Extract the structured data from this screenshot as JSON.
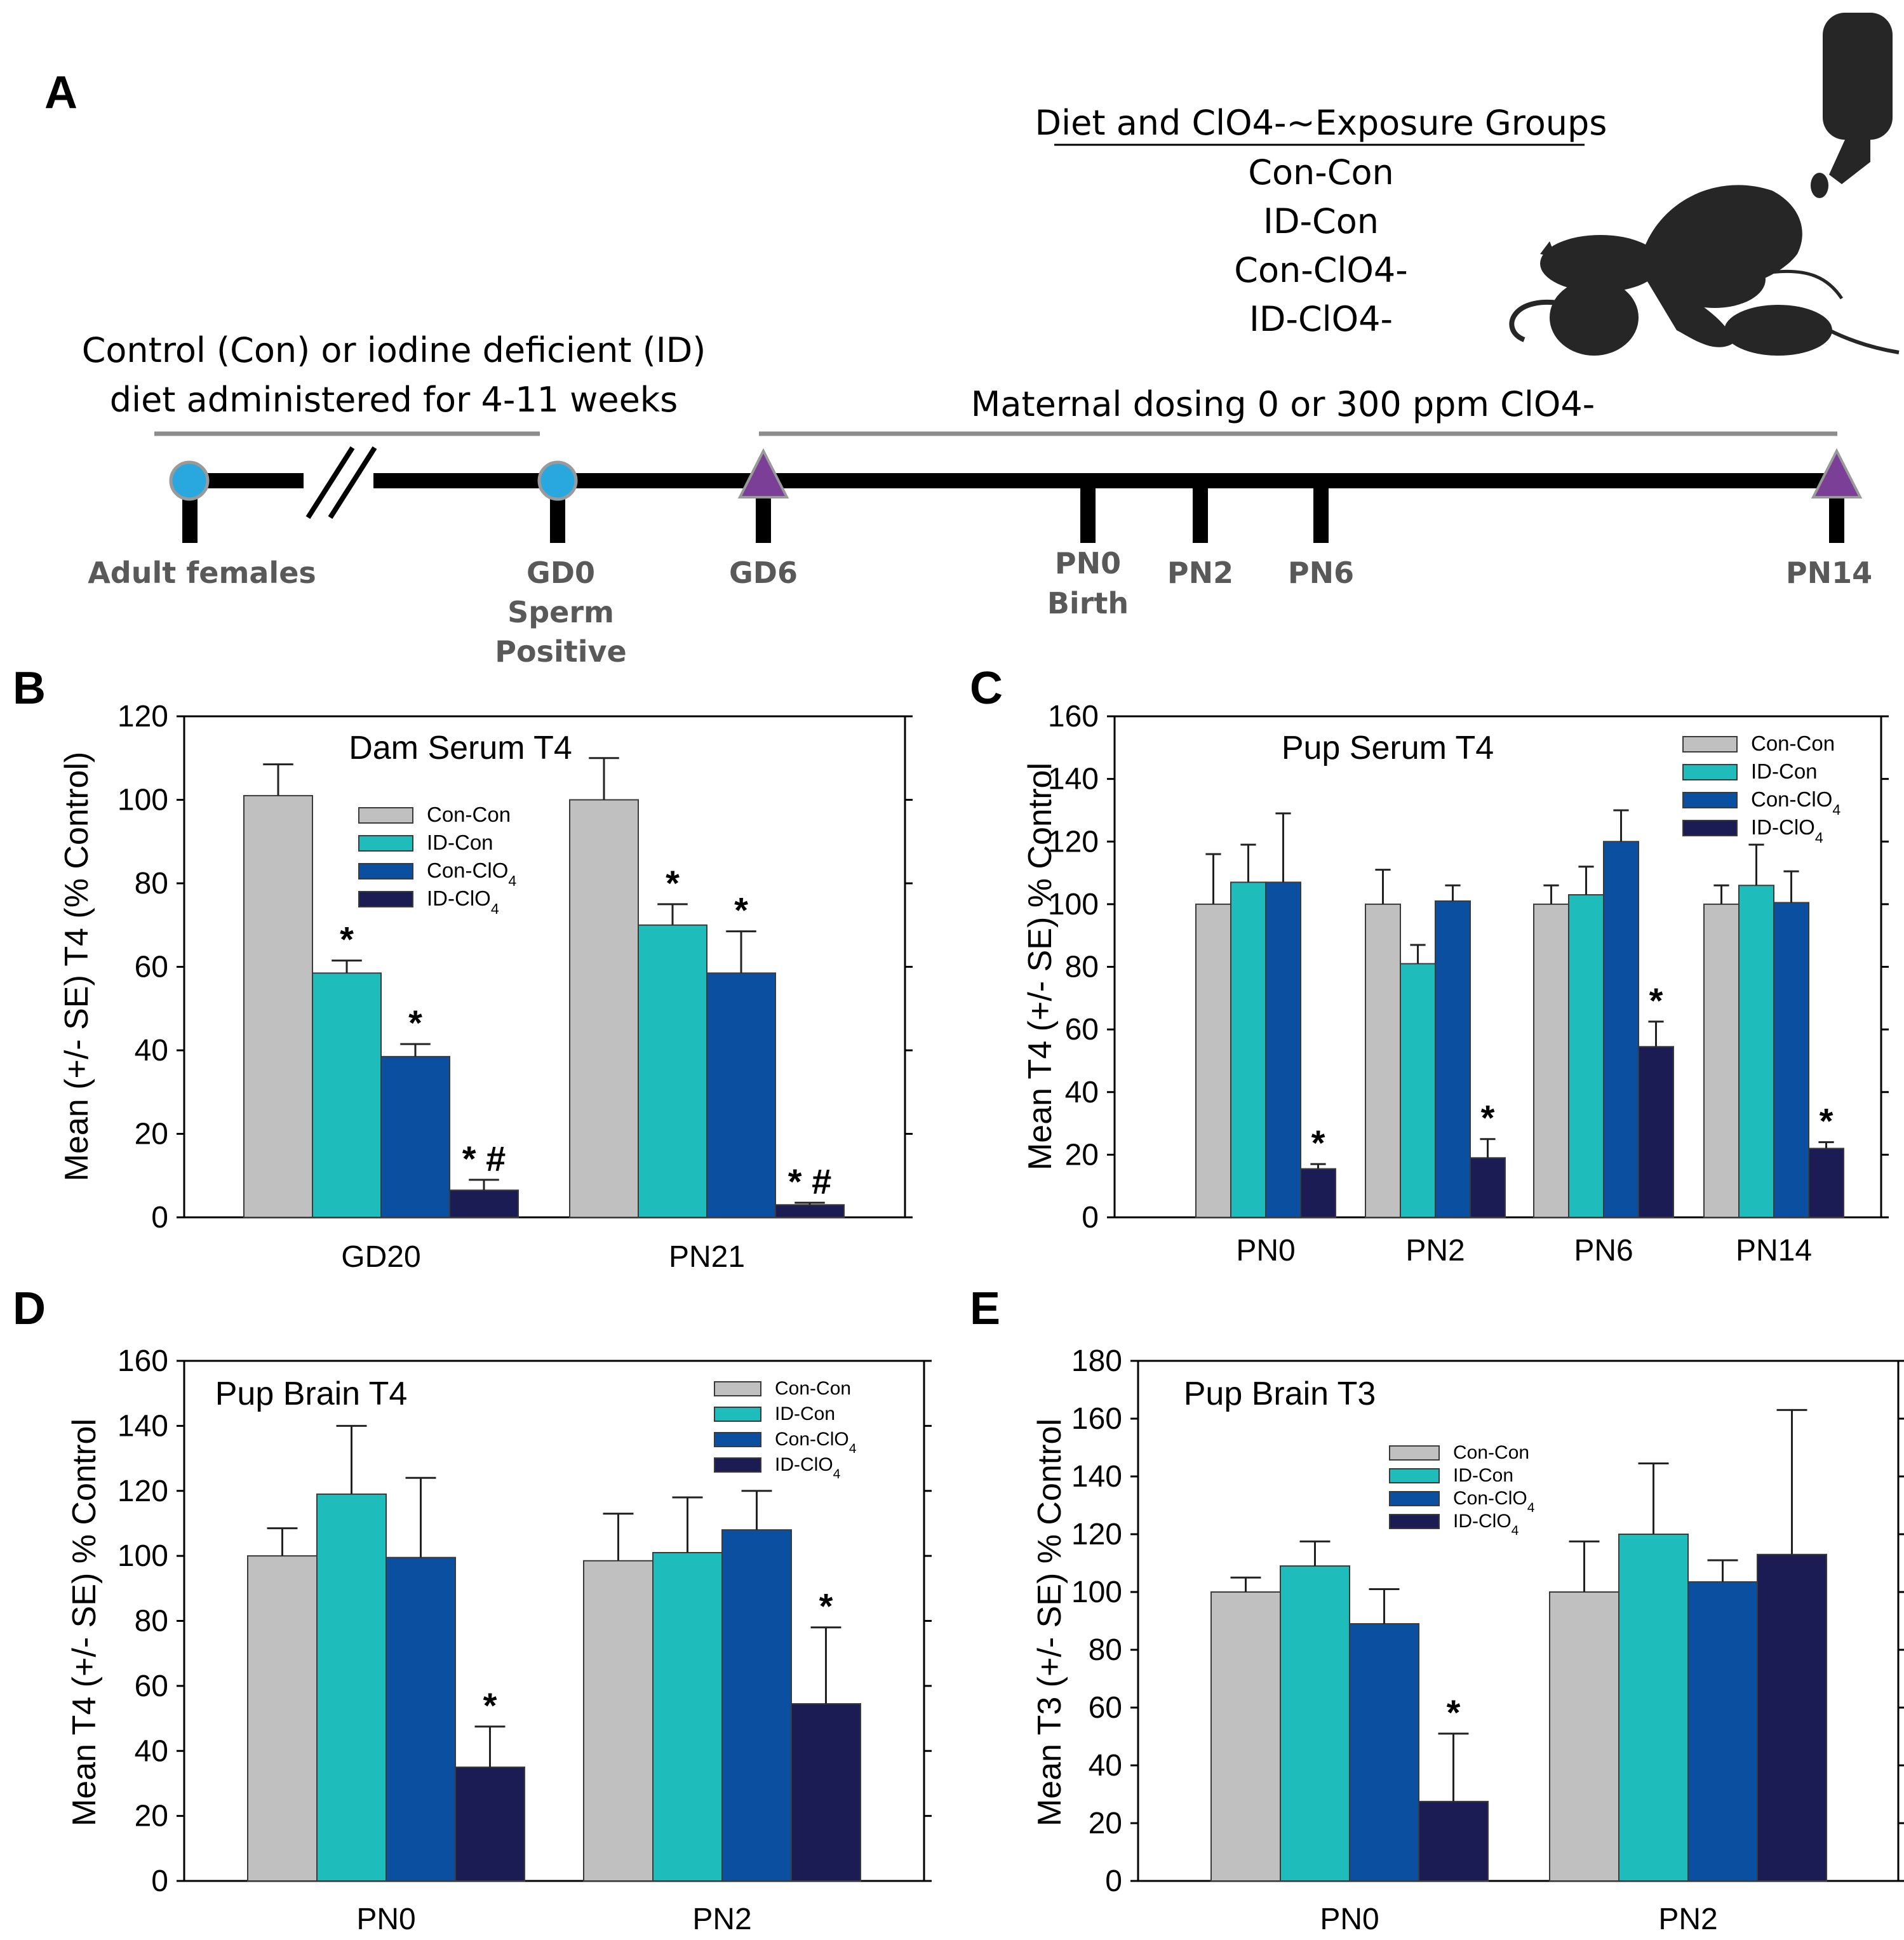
{
  "colors": {
    "con_con": "#c0c0c0",
    "id_con": "#1fbcbc",
    "con_clo4": "#0b4fa0",
    "id_clo4": "#1c1c55",
    "timeline_blue_dot": "#29a8e0",
    "timeline_triangle": "#7b3f98",
    "timeline_bar": "#8c8c8c",
    "rat_silhouette": "#262626"
  },
  "panelA": {
    "label": "A",
    "groups_title": "Diet and ClO4-~Exposure Groups",
    "groups": [
      "Con-Con",
      "ID-Con",
      "Con-ClO4-",
      "ID-ClO4-"
    ],
    "diet_line1": "Control (Con) or iodine deficient (ID)",
    "diet_line2": "diet administered for 4-11 weeks",
    "dosing_text": "Maternal dosing 0 or 300 ppm ClO4-",
    "milestones": {
      "adult": "Adult females",
      "gd0_1": "GD0",
      "gd0_2": "Sperm",
      "gd0_3": "Positive",
      "gd6": "GD6",
      "pn0_1": "PN0",
      "pn0_2": "Birth",
      "pn2": "PN2",
      "pn6": "PN6",
      "pn14": "PN14"
    }
  },
  "chart_data": [
    {
      "panel": "B",
      "type": "bar",
      "title": "Dam Serum T4",
      "ylabel": "Mean (+/- SE) T4 (% Control)",
      "xlabel": "",
      "ylim": [
        0,
        120
      ],
      "yticks": [
        0,
        20,
        40,
        60,
        80,
        100,
        120
      ],
      "categories": [
        "GD20",
        "PN21"
      ],
      "legend": [
        "Con-Con",
        "ID-Con",
        "Con-ClO4",
        "ID-ClO4"
      ],
      "series": [
        {
          "name": "Con-Con",
          "values": [
            101,
            100
          ],
          "errors": [
            7.5,
            10
          ],
          "marks": [
            "",
            ""
          ]
        },
        {
          "name": "ID-Con",
          "values": [
            58.5,
            70
          ],
          "errors": [
            3,
            5
          ],
          "marks": [
            "*",
            "*"
          ]
        },
        {
          "name": "Con-ClO4",
          "values": [
            38.5,
            58.5
          ],
          "errors": [
            3,
            10
          ],
          "marks": [
            "*",
            "*"
          ]
        },
        {
          "name": "ID-ClO4",
          "values": [
            6.5,
            3
          ],
          "errors": [
            2.5,
            0.5
          ],
          "marks": [
            "*#",
            "*#"
          ]
        }
      ]
    },
    {
      "panel": "C",
      "type": "bar",
      "title": "Pup Serum T4",
      "ylabel": "Mean T4  (+/- SE) % Control",
      "xlabel": "",
      "ylim": [
        0,
        160
      ],
      "yticks": [
        0,
        20,
        40,
        60,
        80,
        100,
        120,
        140,
        160
      ],
      "categories": [
        "PN0",
        "PN2",
        "PN6",
        "PN14"
      ],
      "legend": [
        "Con-Con",
        "ID-Con",
        "Con-ClO4",
        "ID-ClO4"
      ],
      "series": [
        {
          "name": "Con-Con",
          "values": [
            100,
            100,
            100,
            100
          ],
          "errors": [
            16,
            11,
            6,
            6
          ],
          "marks": [
            "",
            "",
            "",
            ""
          ]
        },
        {
          "name": "ID-Con",
          "values": [
            107,
            81,
            103,
            106
          ],
          "errors": [
            12,
            6,
            9,
            13
          ],
          "marks": [
            "",
            "",
            "",
            ""
          ]
        },
        {
          "name": "Con-ClO4",
          "values": [
            107,
            101,
            120,
            100.5
          ],
          "errors": [
            22,
            5,
            10,
            10
          ],
          "marks": [
            "",
            "",
            "",
            ""
          ]
        },
        {
          "name": "ID-ClO4",
          "values": [
            15.5,
            19,
            54.5,
            22
          ],
          "errors": [
            1.5,
            6,
            8,
            2
          ],
          "marks": [
            "*",
            "*",
            "*",
            "*"
          ]
        }
      ]
    },
    {
      "panel": "D",
      "type": "bar",
      "title": "Pup Brain T4",
      "ylabel": "Mean T4  (+/- SE) % Control",
      "xlabel": "",
      "ylim": [
        0,
        160
      ],
      "yticks": [
        0,
        20,
        40,
        60,
        80,
        100,
        120,
        140,
        160
      ],
      "categories": [
        "PN0",
        "PN2"
      ],
      "legend": [
        "Con-Con",
        "ID-Con",
        "Con-ClO4",
        "ID-ClO4"
      ],
      "series": [
        {
          "name": "Con-Con",
          "values": [
            100,
            98.5
          ],
          "errors": [
            8.5,
            14.5
          ],
          "marks": [
            "",
            ""
          ]
        },
        {
          "name": "ID-Con",
          "values": [
            119,
            101
          ],
          "errors": [
            21,
            17
          ],
          "marks": [
            "",
            ""
          ]
        },
        {
          "name": "Con-ClO4",
          "values": [
            99.5,
            108
          ],
          "errors": [
            24.5,
            12
          ],
          "marks": [
            "",
            ""
          ]
        },
        {
          "name": "ID-ClO4",
          "values": [
            35,
            54.5
          ],
          "errors": [
            12.5,
            23.5
          ],
          "marks": [
            "*",
            "*"
          ]
        }
      ]
    },
    {
      "panel": "E",
      "type": "bar",
      "title": "Pup Brain T3",
      "ylabel": "Mean T3  (+/- SE) % Control",
      "xlabel": "",
      "ylim": [
        0,
        180
      ],
      "yticks": [
        0,
        20,
        40,
        60,
        80,
        100,
        120,
        140,
        160,
        180
      ],
      "categories": [
        "PN0",
        "PN2"
      ],
      "legend": [
        "Con-Con",
        "ID-Con",
        "Con-ClO4",
        "ID-ClO4"
      ],
      "series": [
        {
          "name": "Con-Con",
          "values": [
            100,
            100
          ],
          "errors": [
            5,
            17.5
          ],
          "marks": [
            "",
            ""
          ]
        },
        {
          "name": "ID-Con",
          "values": [
            109,
            120
          ],
          "errors": [
            8.5,
            24.5
          ],
          "marks": [
            "",
            ""
          ]
        },
        {
          "name": "Con-ClO4",
          "values": [
            89,
            103.5
          ],
          "errors": [
            12,
            7.5
          ],
          "marks": [
            "",
            ""
          ]
        },
        {
          "name": "ID-ClO4",
          "values": [
            27.5,
            113
          ],
          "errors": [
            23.5,
            50
          ],
          "marks": [
            "*",
            ""
          ]
        }
      ]
    }
  ]
}
